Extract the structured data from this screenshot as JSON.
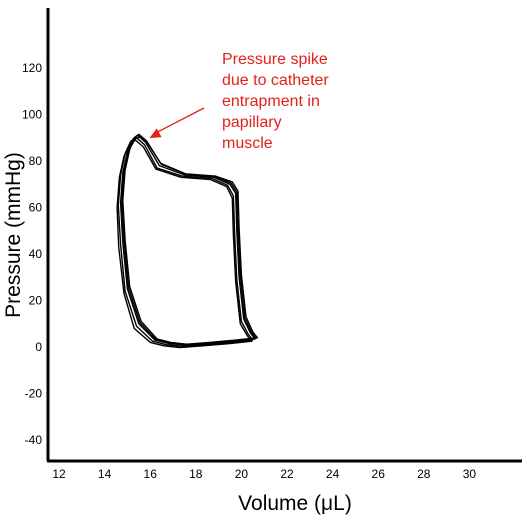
{
  "chart_data": {
    "type": "line",
    "title": "",
    "xlabel": "Volume (μL)",
    "ylabel": "Pressure (mmHg)",
    "xlim": [
      12,
      30
    ],
    "ylim": [
      -50,
      150
    ],
    "x_ticks": [
      12,
      14,
      16,
      18,
      20,
      22,
      24,
      26,
      28,
      30
    ],
    "y_ticks": [
      -40,
      -20,
      0,
      20,
      40,
      60,
      80,
      100,
      120
    ],
    "grid": false,
    "series": [
      {
        "color": "#000000",
        "loops": [
          {
            "x": [
              15.45,
              15.8,
              16.4,
              17.5,
              18.8,
              19.5,
              19.75,
              19.8,
              19.9,
              20.1,
              20.4,
              20.6,
              19.7,
              18.5,
              17.5,
              16.8,
              16.2,
              15.5,
              15.0,
              14.8,
              14.7,
              14.8,
              15.0,
              15.25,
              15.45
            ],
            "y": [
              91.0,
              88.0,
              78.0,
              74.0,
              73.0,
              70.0,
              66.0,
              50.0,
              30.0,
              12.0,
              6.0,
              3.5,
              2.5,
              1.5,
              0.8,
              1.5,
              3.0,
              10.0,
              25.0,
              45.0,
              62.0,
              75.0,
              84.0,
              89.5,
              91.0
            ]
          },
          {
            "x": [
              15.4,
              15.75,
              16.3,
              17.4,
              18.7,
              19.4,
              19.65,
              19.7,
              19.8,
              20.0,
              20.3,
              20.5,
              19.6,
              18.4,
              17.4,
              16.7,
              16.1,
              15.4,
              14.9,
              14.7,
              14.6,
              14.7,
              14.9,
              15.15,
              15.4
            ],
            "y": [
              90.0,
              87.0,
              77.0,
              73.5,
              72.5,
              69.5,
              65.0,
              49.0,
              29.0,
              11.0,
              5.5,
              3.0,
              2.0,
              1.0,
              0.3,
              1.0,
              2.5,
              9.0,
              24.0,
              44.0,
              61.0,
              74.0,
              83.0,
              88.5,
              90.0
            ]
          },
          {
            "x": [
              15.5,
              15.85,
              16.45,
              17.55,
              18.85,
              19.6,
              19.85,
              19.9,
              20.0,
              20.2,
              20.5,
              20.7,
              19.8,
              18.6,
              17.6,
              16.9,
              16.3,
              15.6,
              15.1,
              14.9,
              14.8,
              14.9,
              15.1,
              15.3,
              15.5
            ],
            "y": [
              91.5,
              88.5,
              79.0,
              74.5,
              73.5,
              71.0,
              67.0,
              51.0,
              31.0,
              13.0,
              6.5,
              4.0,
              3.0,
              2.0,
              1.2,
              2.0,
              3.5,
              11.0,
              26.0,
              46.0,
              63.0,
              76.0,
              85.0,
              90.0,
              91.5
            ]
          },
          {
            "x": [
              15.35,
              15.7,
              16.25,
              17.35,
              18.65,
              19.35,
              19.6,
              19.65,
              19.75,
              19.95,
              20.25,
              20.45,
              19.5,
              18.3,
              17.3,
              16.6,
              16.0,
              15.3,
              14.85,
              14.62,
              14.55,
              14.65,
              14.85,
              15.1,
              15.35
            ],
            "y": [
              89.0,
              86.0,
              76.5,
              73.0,
              72.0,
              69.0,
              64.0,
              48.0,
              28.0,
              10.0,
              5.0,
              2.5,
              1.5,
              0.5,
              -0.2,
              0.5,
              2.0,
              8.0,
              23.0,
              43.0,
              60.0,
              73.0,
              82.0,
              87.5,
              89.0
            ]
          },
          {
            "x": [
              15.55,
              15.9,
              16.5,
              17.6,
              18.9,
              19.55,
              19.8,
              19.85,
              19.95,
              20.15,
              20.45,
              20.65,
              19.75,
              18.55,
              17.55,
              16.85,
              16.25,
              15.55,
              15.05,
              14.85,
              14.75,
              14.85,
              15.05,
              15.35,
              15.55
            ],
            "y": [
              90.5,
              87.5,
              78.5,
              74.2,
              73.2,
              70.5,
              66.5,
              50.5,
              30.5,
              12.5,
              6.2,
              3.8,
              2.8,
              1.8,
              1.0,
              1.8,
              3.2,
              10.5,
              25.5,
              45.5,
              62.5,
              75.5,
              84.5,
              89.5,
              90.5
            ]
          }
        ]
      }
    ],
    "annotation": {
      "lines": [
        "Pressure spike",
        "due to catheter",
        "entrapment in",
        "papillary",
        "muscle"
      ],
      "color": "#e32119",
      "arrow_to": {
        "x": 15.75,
        "y": 89
      }
    }
  }
}
